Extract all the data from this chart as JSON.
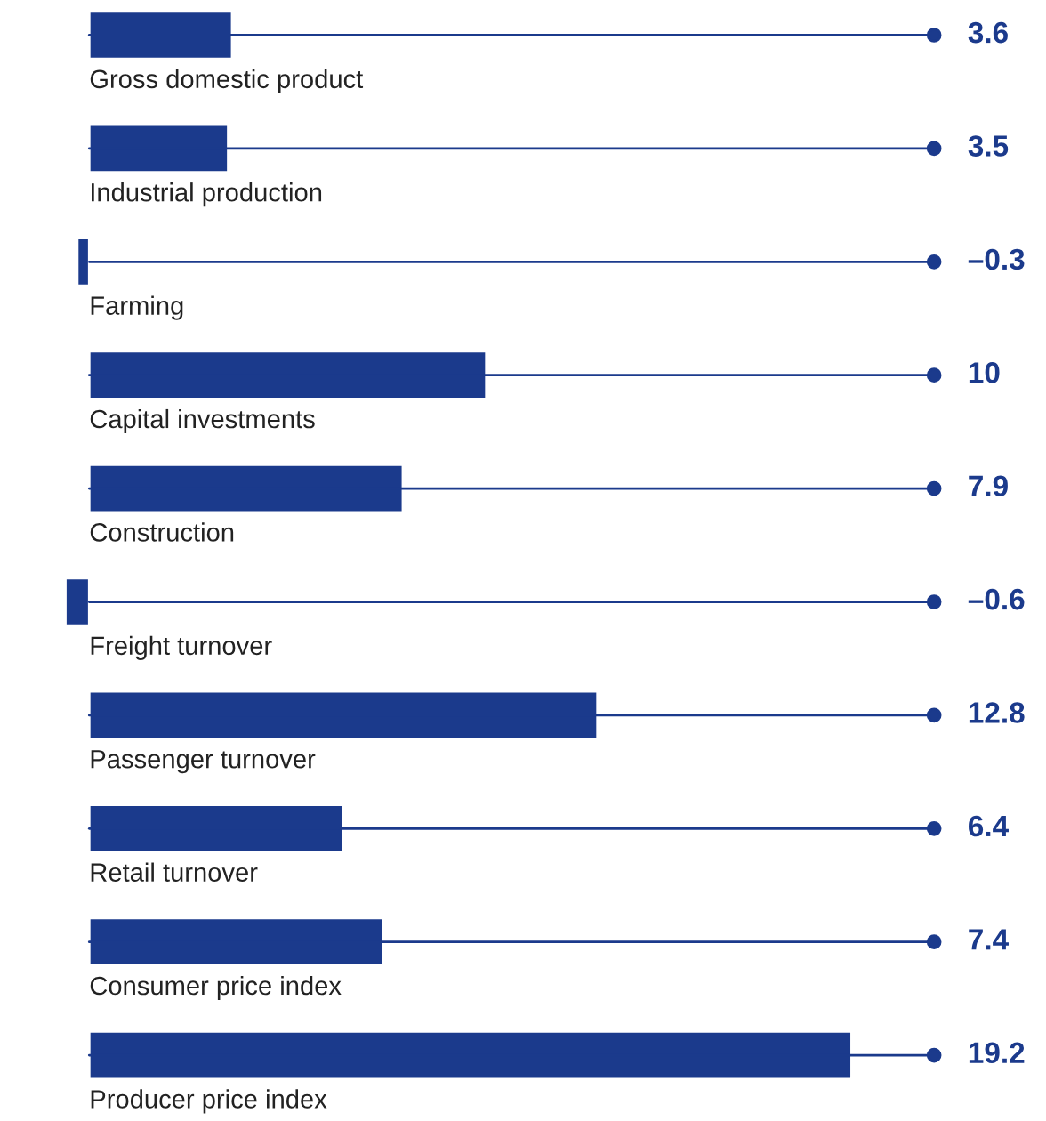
{
  "chart_data": {
    "type": "bar",
    "orientation": "horizontal",
    "categories": [
      "Gross domestic product",
      "Industrial production",
      "Farming",
      "Capital investments",
      "Construction",
      "Freight turnover",
      "Passenger turnover",
      "Retail turnover",
      "Consumer price index",
      "Producer price index"
    ],
    "values": [
      3.6,
      3.5,
      -0.3,
      10,
      7.9,
      -0.6,
      12.8,
      6.4,
      7.4,
      19.2
    ],
    "value_labels": [
      "3.6",
      "3.5",
      "–0.3",
      "10",
      "7.9",
      "–0.6",
      "12.8",
      "6.4",
      "7.4",
      "19.2"
    ],
    "color": "#1b3a8c"
  }
}
